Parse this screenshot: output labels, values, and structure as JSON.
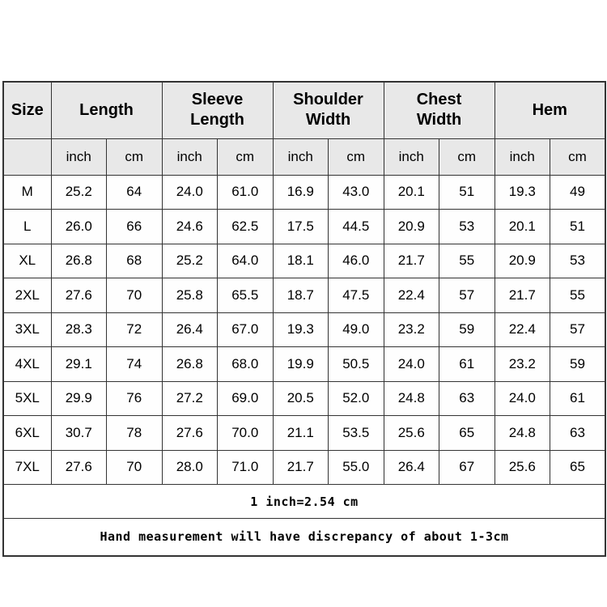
{
  "table": {
    "columns": [
      {
        "label": "Size",
        "sub": []
      },
      {
        "label": "Length",
        "sub": [
          "inch",
          "cm"
        ]
      },
      {
        "label": "Sleeve Length",
        "sub": [
          "inch",
          "cm"
        ]
      },
      {
        "label": "Shoulder Width",
        "sub": [
          "inch",
          "cm"
        ]
      },
      {
        "label": "Chest Width",
        "sub": [
          "inch",
          "cm"
        ]
      },
      {
        "label": "Hem",
        "sub": [
          "inch",
          "cm"
        ]
      }
    ],
    "rows": [
      {
        "size": "M",
        "values": [
          "25.2",
          "64",
          "24.0",
          "61.0",
          "16.9",
          "43.0",
          "20.1",
          "51",
          "19.3",
          "49"
        ]
      },
      {
        "size": "L",
        "values": [
          "26.0",
          "66",
          "24.6",
          "62.5",
          "17.5",
          "44.5",
          "20.9",
          "53",
          "20.1",
          "51"
        ]
      },
      {
        "size": "XL",
        "values": [
          "26.8",
          "68",
          "25.2",
          "64.0",
          "18.1",
          "46.0",
          "21.7",
          "55",
          "20.9",
          "53"
        ]
      },
      {
        "size": "2XL",
        "values": [
          "27.6",
          "70",
          "25.8",
          "65.5",
          "18.7",
          "47.5",
          "22.4",
          "57",
          "21.7",
          "55"
        ]
      },
      {
        "size": "3XL",
        "values": [
          "28.3",
          "72",
          "26.4",
          "67.0",
          "19.3",
          "49.0",
          "23.2",
          "59",
          "22.4",
          "57"
        ]
      },
      {
        "size": "4XL",
        "values": [
          "29.1",
          "74",
          "26.8",
          "68.0",
          "19.9",
          "50.5",
          "24.0",
          "61",
          "23.2",
          "59"
        ]
      },
      {
        "size": "5XL",
        "values": [
          "29.9",
          "76",
          "27.2",
          "69.0",
          "20.5",
          "52.0",
          "24.8",
          "63",
          "24.0",
          "61"
        ]
      },
      {
        "size": "6XL",
        "values": [
          "30.7",
          "78",
          "27.6",
          "70.0",
          "21.1",
          "53.5",
          "25.6",
          "65",
          "24.8",
          "63"
        ]
      },
      {
        "size": "7XL",
        "values": [
          "27.6",
          "70",
          "28.0",
          "71.0",
          "21.7",
          "55.0",
          "26.4",
          "67",
          "25.6",
          "65"
        ]
      }
    ],
    "notes": [
      "1 inch=2.54 cm",
      "Hand measurement will have discrepancy of about 1-3cm"
    ]
  },
  "colors": {
    "header_bg": "#e8e8e8",
    "border": "#333333",
    "cell_bg": "#fefefe",
    "page_bg": "#ffffff"
  },
  "chart_data": {
    "type": "table",
    "columns": [
      "Size",
      "Length (inch)",
      "Length (cm)",
      "Sleeve Length (inch)",
      "Sleeve Length (cm)",
      "Shoulder Width (inch)",
      "Shoulder Width (cm)",
      "Chest Width (inch)",
      "Chest Width (cm)",
      "Hem (inch)",
      "Hem (cm)"
    ],
    "rows": [
      [
        "M",
        25.2,
        64,
        24.0,
        61.0,
        16.9,
        43.0,
        20.1,
        51,
        19.3,
        49
      ],
      [
        "L",
        26.0,
        66,
        24.6,
        62.5,
        17.5,
        44.5,
        20.9,
        53,
        20.1,
        51
      ],
      [
        "XL",
        26.8,
        68,
        25.2,
        64.0,
        18.1,
        46.0,
        21.7,
        55,
        20.9,
        53
      ],
      [
        "2XL",
        27.6,
        70,
        25.8,
        65.5,
        18.7,
        47.5,
        22.4,
        57,
        21.7,
        55
      ],
      [
        "3XL",
        28.3,
        72,
        26.4,
        67.0,
        19.3,
        49.0,
        23.2,
        59,
        22.4,
        57
      ],
      [
        "4XL",
        29.1,
        74,
        26.8,
        68.0,
        19.9,
        50.5,
        24.0,
        61,
        23.2,
        59
      ],
      [
        "5XL",
        29.9,
        76,
        27.2,
        69.0,
        20.5,
        52.0,
        24.8,
        63,
        24.0,
        61
      ],
      [
        "6XL",
        30.7,
        78,
        27.6,
        70.0,
        21.1,
        53.5,
        25.6,
        65,
        24.8,
        63
      ],
      [
        "7XL",
        27.6,
        70,
        28.0,
        71.0,
        21.7,
        55.0,
        26.4,
        67,
        25.6,
        65
      ]
    ],
    "notes": [
      "1 inch=2.54 cm",
      "Hand measurement will have discrepancy of about 1-3cm"
    ]
  }
}
